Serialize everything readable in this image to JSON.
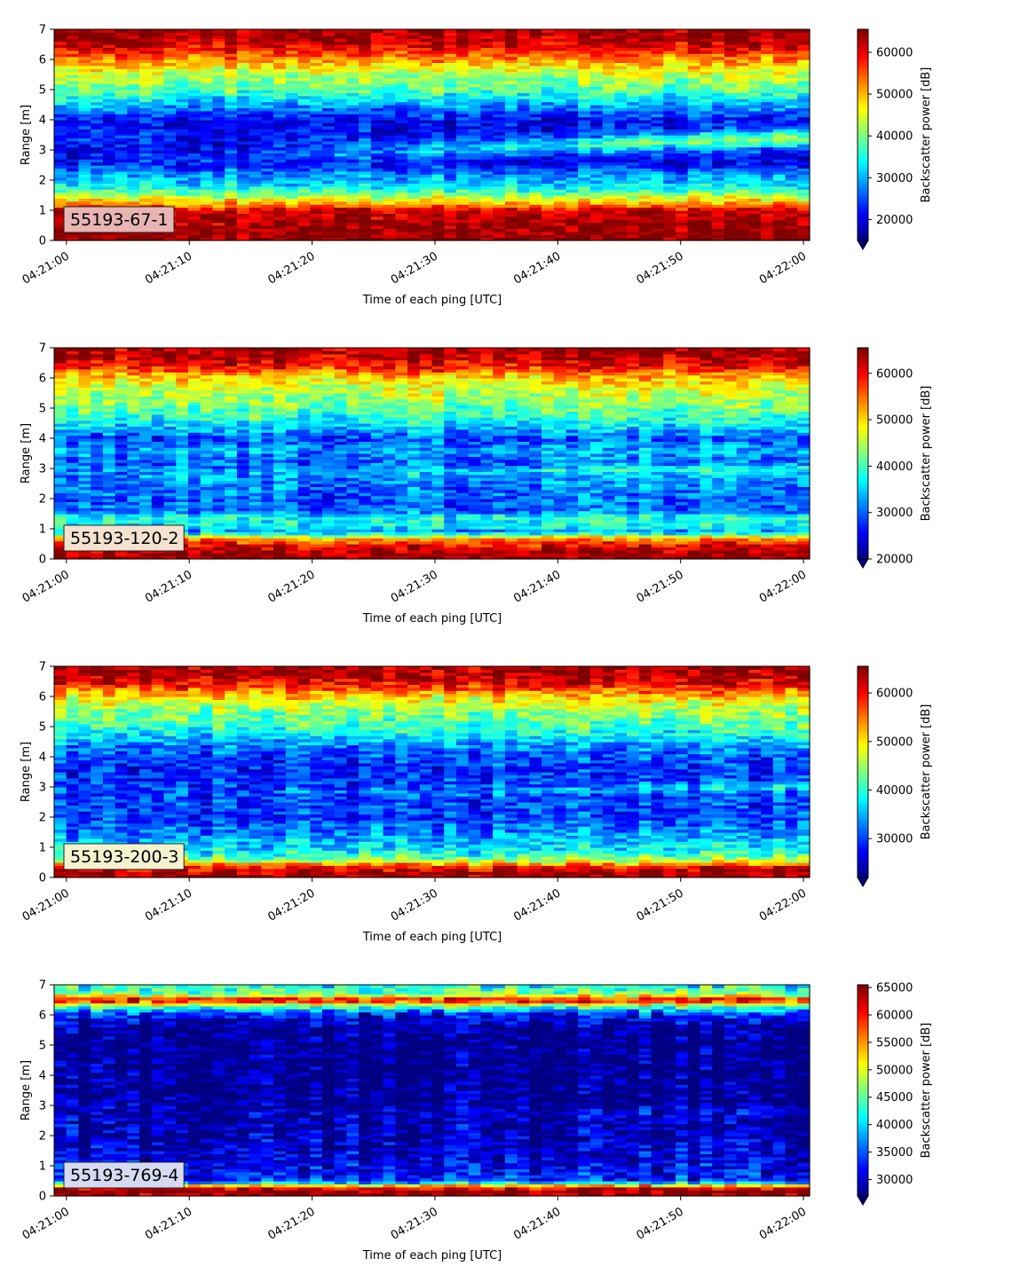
{
  "chart_data": [
    {
      "type": "heatmap",
      "label": "55193-67-1",
      "label_bg": "#e8b4b4",
      "xlabel": "Time of each ping [UTC]",
      "ylabel": "Range [m]",
      "xticks": [
        "04:21:00",
        "04:21:10",
        "04:21:20",
        "04:21:30",
        "04:21:40",
        "04:21:50",
        "04:22:00"
      ],
      "xlim_seconds": [
        -1,
        60.5
      ],
      "ylim": [
        0,
        7
      ],
      "yticks": [
        0,
        1,
        2,
        3,
        4,
        5,
        6,
        7
      ],
      "colorbar": {
        "label": "Backscatter power [dB]",
        "range": [
          15000,
          65500
        ],
        "ticks": [
          20000,
          30000,
          40000,
          50000,
          60000
        ],
        "extend": "min",
        "colormap": "jet"
      },
      "profile": [
        [
          0.2,
          65000
        ],
        [
          0.5,
          64000
        ],
        [
          1.0,
          62000
        ],
        [
          1.2,
          52000
        ],
        [
          1.5,
          42000
        ],
        [
          1.8,
          33000
        ],
        [
          2.2,
          28000
        ],
        [
          2.6,
          20000
        ],
        [
          3.0,
          20000
        ],
        [
          3.4,
          22000
        ],
        [
          4.0,
          21000
        ],
        [
          4.5,
          30000
        ],
        [
          5.0,
          38000
        ],
        [
          5.5,
          43000
        ],
        [
          6.0,
          52000
        ],
        [
          6.4,
          60000
        ],
        [
          6.8,
          64000
        ],
        [
          7.0,
          64000
        ]
      ],
      "trend": {
        "center_start": 2.6,
        "center_end": 3.4,
        "amp": 20000,
        "width": 0.3
      }
    },
    {
      "type": "heatmap",
      "label": "55193-120-2",
      "label_bg": "#f3e2cf",
      "xlabel": "Time of each ping [UTC]",
      "ylabel": "Range [m]",
      "xticks": [
        "04:21:00",
        "04:21:10",
        "04:21:20",
        "04:21:30",
        "04:21:40",
        "04:21:50",
        "04:22:00"
      ],
      "xlim_seconds": [
        -1,
        60.5
      ],
      "ylim": [
        0,
        7
      ],
      "yticks": [
        0,
        1,
        2,
        3,
        4,
        5,
        6,
        7
      ],
      "colorbar": {
        "label": "Backscatter power [dB]",
        "range": [
          20000,
          65500
        ],
        "ticks": [
          20000,
          30000,
          40000,
          50000,
          60000
        ],
        "extend": "min",
        "colormap": "jet"
      },
      "profile": [
        [
          0.1,
          65000
        ],
        [
          0.4,
          62000
        ],
        [
          0.7,
          52000
        ],
        [
          0.9,
          32000
        ],
        [
          1.1,
          37000
        ],
        [
          1.4,
          38000
        ],
        [
          1.6,
          30000
        ],
        [
          2.0,
          30000
        ],
        [
          2.6,
          32000
        ],
        [
          3.2,
          30000
        ],
        [
          3.6,
          33000
        ],
        [
          4.0,
          29000
        ],
        [
          4.5,
          37000
        ],
        [
          5.0,
          42000
        ],
        [
          5.5,
          45000
        ],
        [
          6.0,
          50000
        ],
        [
          6.4,
          60000
        ],
        [
          6.8,
          64000
        ],
        [
          7.0,
          64000
        ]
      ],
      "trend": {
        "center_start": 2.8,
        "center_end": 3.0,
        "amp": 8000,
        "width": 0.15
      }
    },
    {
      "type": "heatmap",
      "label": "55193-200-3",
      "label_bg": "#f5f2cf",
      "xlabel": "Time of each ping [UTC]",
      "ylabel": "Range [m]",
      "xticks": [
        "04:21:00",
        "04:21:10",
        "04:21:20",
        "04:21:30",
        "04:21:40",
        "04:21:50",
        "04:22:00"
      ],
      "xlim_seconds": [
        -1,
        60.5
      ],
      "ylim": [
        0,
        7
      ],
      "yticks": [
        0,
        1,
        2,
        3,
        4,
        5,
        6,
        7
      ],
      "colorbar": {
        "label": "Backscatter power [dB]",
        "range": [
          22000,
          65500
        ],
        "ticks": [
          30000,
          40000,
          50000,
          60000
        ],
        "extend": "min",
        "colormap": "jet"
      },
      "profile": [
        [
          0.1,
          65000
        ],
        [
          0.35,
          60000
        ],
        [
          0.6,
          44000
        ],
        [
          0.9,
          38000
        ],
        [
          1.2,
          36000
        ],
        [
          1.5,
          33000
        ],
        [
          2.0,
          30000
        ],
        [
          2.5,
          30000
        ],
        [
          3.0,
          30000
        ],
        [
          3.5,
          29000
        ],
        [
          4.0,
          30000
        ],
        [
          4.5,
          35000
        ],
        [
          5.0,
          41000
        ],
        [
          5.5,
          44000
        ],
        [
          6.0,
          50000
        ],
        [
          6.4,
          60000
        ],
        [
          6.8,
          64000
        ],
        [
          7.0,
          64000
        ]
      ],
      "trend": {
        "center_start": 2.7,
        "center_end": 3.0,
        "amp": 6000,
        "width": 0.15
      }
    },
    {
      "type": "heatmap",
      "label": "55193-769-4",
      "label_bg": "#d6daf0",
      "xlabel": "Time of each ping [UTC]",
      "ylabel": "Range [m]",
      "xticks": [
        "04:21:00",
        "04:21:10",
        "04:21:20",
        "04:21:30",
        "04:21:40",
        "04:21:50",
        "04:22:00"
      ],
      "xlim_seconds": [
        -1,
        60.5
      ],
      "ylim": [
        0,
        7
      ],
      "yticks": [
        0,
        1,
        2,
        3,
        4,
        5,
        6,
        7
      ],
      "colorbar": {
        "label": "Backscatter power [dB]",
        "range": [
          27000,
          65500
        ],
        "ticks": [
          30000,
          35000,
          40000,
          45000,
          50000,
          55000,
          60000,
          65000
        ],
        "extend": "min",
        "colormap": "jet"
      },
      "profile": [
        [
          0.15,
          65000
        ],
        [
          0.3,
          60000
        ],
        [
          0.5,
          33000
        ],
        [
          1.0,
          31000
        ],
        [
          1.5,
          30000
        ],
        [
          2.0,
          29000
        ],
        [
          2.5,
          28500
        ],
        [
          3.0,
          27500
        ],
        [
          4.0,
          27000
        ],
        [
          5.0,
          27000
        ],
        [
          5.6,
          27500
        ],
        [
          6.0,
          32000
        ],
        [
          6.3,
          44000
        ],
        [
          6.5,
          63000
        ],
        [
          6.7,
          46000
        ],
        [
          7.0,
          42000
        ]
      ],
      "trend": {
        "center_start": 2.8,
        "center_end": 2.8,
        "amp": 2500,
        "width": 0.2
      }
    }
  ]
}
